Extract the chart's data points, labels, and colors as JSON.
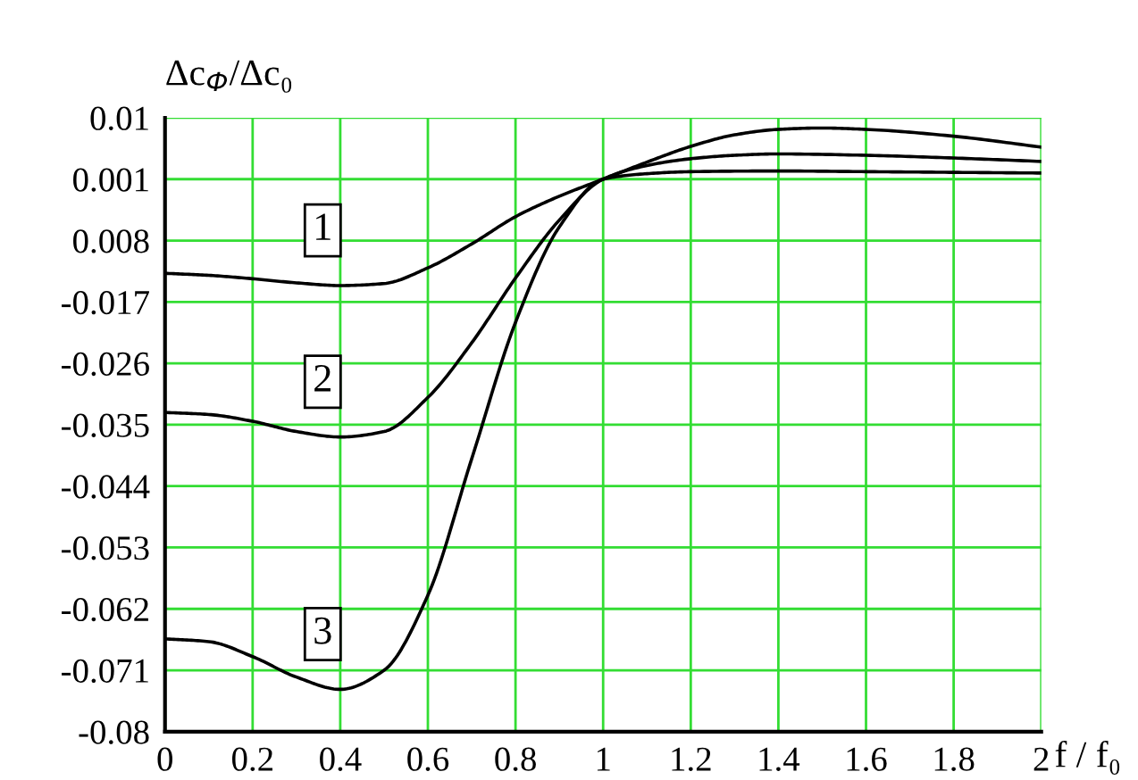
{
  "chart_data": {
    "type": "line",
    "xlabel": "f / f₀",
    "ylabel": "Δc$_{Ф}$/Δc₀",
    "xlim": [
      0,
      2
    ],
    "xticks": [
      0,
      0.2,
      0.4,
      0.6,
      0.8,
      1,
      1.2,
      1.4,
      1.6,
      1.8,
      2
    ],
    "ylim": [
      -0.08,
      0.01
    ],
    "yticks": [
      0.01,
      0.001,
      {
        "value": -0.008,
        "label": "0.008"
      },
      -0.017,
      -0.026,
      -0.035,
      -0.044,
      -0.053,
      -0.062,
      -0.071,
      -0.08
    ],
    "grid": true,
    "legend": false,
    "marker": "none",
    "line_style": "solid",
    "series": [
      {
        "name": "1",
        "color": "#000000",
        "x": [
          0,
          0.1,
          0.2,
          0.3,
          0.4,
          0.5,
          0.6,
          0.7,
          0.8,
          0.9,
          1,
          1.1,
          1.2,
          1.3,
          1.4,
          1.5,
          1.6,
          1.8,
          2
        ],
        "values": [
          -0.0128,
          -0.0131,
          -0.0136,
          -0.0142,
          -0.0146,
          -0.0143,
          -0.012,
          -0.0085,
          -0.0045,
          -0.0015,
          0.001,
          0.0035,
          0.0058,
          0.0075,
          0.0083,
          0.0085,
          0.0083,
          0.0073,
          0.0057
        ]
      },
      {
        "name": "2",
        "color": "#000000",
        "x": [
          0,
          0.1,
          0.2,
          0.3,
          0.4,
          0.5,
          0.6,
          0.7,
          0.8,
          0.9,
          1,
          1.1,
          1.2,
          1.3,
          1.4,
          1.6,
          1.8,
          2
        ],
        "values": [
          -0.0332,
          -0.0335,
          -0.0345,
          -0.036,
          -0.0368,
          -0.036,
          -0.031,
          -0.023,
          -0.0135,
          -0.005,
          0.001,
          0.003,
          0.004,
          0.0045,
          0.0047,
          0.0045,
          0.0041,
          0.0036
        ]
      },
      {
        "name": "3",
        "color": "#000000",
        "x": [
          0,
          0.1,
          0.2,
          0.3,
          0.4,
          0.5,
          0.6,
          0.7,
          0.8,
          0.9,
          1,
          1.1,
          1.2,
          1.4,
          1.6,
          1.8,
          2
        ],
        "values": [
          -0.0664,
          -0.0668,
          -0.069,
          -0.072,
          -0.0738,
          -0.071,
          -0.06,
          -0.04,
          -0.02,
          -0.006,
          0.001,
          0.0018,
          0.0021,
          0.0022,
          0.0021,
          0.002,
          0.0019
        ]
      }
    ]
  }
}
